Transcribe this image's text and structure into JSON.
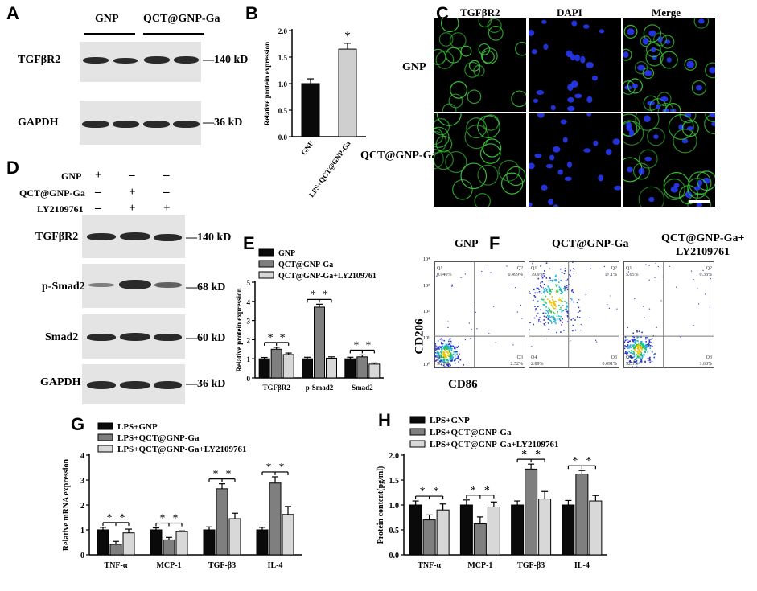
{
  "panels": {
    "A": {
      "label": "A",
      "groups": [
        "GNP",
        "QCT@GNP-Ga"
      ],
      "rows": [
        {
          "name": "TGFβR2",
          "size": "—140 kD"
        },
        {
          "name": "GAPDH",
          "size": "—36 kD"
        }
      ]
    },
    "B": {
      "label": "B"
    },
    "C": {
      "label": "C",
      "columns": [
        "TGFβR2",
        "DAPI",
        "Merge"
      ],
      "rows": [
        "GNP",
        "QCT@GNP-Ga"
      ]
    },
    "D": {
      "label": "D",
      "conditions": [
        {
          "name": "GNP",
          "signs": [
            "+",
            "–",
            "–"
          ]
        },
        {
          "name": "QCT@GNP-Ga",
          "signs": [
            "–",
            "+",
            "–"
          ]
        },
        {
          "name": "LY2109761",
          "signs": [
            "–",
            "+",
            "+"
          ]
        }
      ],
      "rows": [
        {
          "name": "TGFβR2",
          "size": "—140 kD"
        },
        {
          "name": "p-Smad2",
          "size": "—68 kD"
        },
        {
          "name": "Smad2",
          "size": "—60 kD"
        },
        {
          "name": "GAPDH",
          "size": "—36 kD"
        }
      ]
    },
    "E": {
      "label": "E"
    },
    "F": {
      "label": "F",
      "titles": [
        "GNP",
        "QCT@GNP-Ga",
        "QCT@GNP-Ga+",
        "LY2109761"
      ],
      "ylabel": "CD206",
      "xlabel": "CD86",
      "quadrant_names": [
        "Q1",
        "Q2",
        "Q3",
        "Q4"
      ],
      "plots": [
        {
          "q1": "0.040%",
          "q2": "0.499%",
          "q3": "2.52%",
          "q4": "96.9%"
        },
        {
          "q1": "79.9%",
          "q2": "17.1%",
          "q3": "0.091%",
          "q4": "2.89%"
        },
        {
          "q1": "5.65%",
          "q2": "0.38%",
          "q3": "1.68%",
          "q4": "92.3%"
        }
      ],
      "tick_labels": [
        "10⁰",
        "10¹",
        "10²",
        "10³",
        "10⁴"
      ]
    },
    "G": {
      "label": "G"
    },
    "H": {
      "label": "H"
    }
  },
  "colors": {
    "black_bar": "#0a0a0a",
    "gray_bar": "#7f7f7f",
    "light_bar": "#d8d8d8",
    "fluor_green": "#3ccf3c",
    "fluor_blue": "#2a3cff"
  },
  "chart_data": [
    {
      "panel": "B",
      "type": "bar",
      "categories": [
        "GNP",
        "LPS+QCT@GNP-Ga"
      ],
      "values": [
        1.0,
        1.65
      ],
      "errors": [
        0.09,
        0.11
      ],
      "ylabel": "Relative protein expression",
      "ylim": [
        0.0,
        2.0
      ],
      "yticks": [
        "0.0",
        "0.5",
        "1.0",
        "1.5",
        "2.0"
      ],
      "colors": [
        "#0a0a0a",
        "#cfcfcf"
      ],
      "sig": [
        "",
        "*"
      ]
    },
    {
      "panel": "E",
      "type": "bar",
      "categories": [
        "TGFβR2",
        "p-Smad2",
        "Smad2"
      ],
      "series": [
        {
          "name": "GNP",
          "values": [
            1.0,
            1.0,
            1.0
          ],
          "errors": [
            0.07,
            0.08,
            0.08
          ]
        },
        {
          "name": "QCT@GNP-Ga",
          "values": [
            1.5,
            3.7,
            1.1
          ],
          "errors": [
            0.1,
            0.15,
            0.1
          ]
        },
        {
          "name": "QCT@GNP-Ga+LY2109761",
          "values": [
            1.22,
            1.03,
            0.72
          ],
          "errors": [
            0.08,
            0.07,
            0.06
          ]
        }
      ],
      "ylabel": "Relative protein expression",
      "ylim": [
        0,
        5
      ],
      "yticks": [
        "0",
        "1",
        "2",
        "3",
        "4",
        "5"
      ],
      "sig": "*"
    },
    {
      "panel": "G",
      "type": "bar",
      "categories": [
        "TNF-α",
        "MCP-1",
        "TGF-β3",
        "IL-4"
      ],
      "series": [
        {
          "name": "LPS+GNP",
          "values": [
            1.0,
            1.0,
            1.0,
            1.0
          ],
          "errors": [
            0.1,
            0.08,
            0.12,
            0.1
          ]
        },
        {
          "name": "LPS+QCT@GNP-Ga",
          "values": [
            0.42,
            0.6,
            2.65,
            2.88
          ],
          "errors": [
            0.12,
            0.1,
            0.2,
            0.25
          ]
        },
        {
          "name": "LPS+QCT@GNP-Ga+LY2109761",
          "values": [
            0.88,
            0.93,
            1.45,
            1.62
          ],
          "errors": [
            0.15,
            0.03,
            0.22,
            0.32
          ]
        }
      ],
      "ylabel": "Relative mRNA expression",
      "ylim": [
        0,
        4
      ],
      "yticks": [
        "0",
        "1",
        "2",
        "3",
        "4"
      ],
      "sig": "*"
    },
    {
      "panel": "H",
      "type": "bar",
      "categories": [
        "TNF-α",
        "MCP-1",
        "TGF-β3",
        "IL-4"
      ],
      "series": [
        {
          "name": "LPS+GNP",
          "values": [
            1.0,
            1.0,
            1.0,
            1.0
          ],
          "errors": [
            0.08,
            0.1,
            0.08,
            0.09
          ]
        },
        {
          "name": "LPS+QCT@GNP-Ga",
          "values": [
            0.7,
            0.62,
            1.72,
            1.62
          ],
          "errors": [
            0.1,
            0.14,
            0.1,
            0.07
          ]
        },
        {
          "name": "LPS+QCT@GNP-Ga+LY2109761",
          "values": [
            0.9,
            0.96,
            1.12,
            1.08
          ],
          "errors": [
            0.12,
            0.1,
            0.15,
            0.11
          ]
        }
      ],
      "ylabel": "Protein content(pg/ml)",
      "ylim": [
        0.0,
        2.0
      ],
      "yticks": [
        "0.0",
        "0.5",
        "1.0",
        "1.5",
        "2.0"
      ],
      "sig": "*"
    }
  ]
}
